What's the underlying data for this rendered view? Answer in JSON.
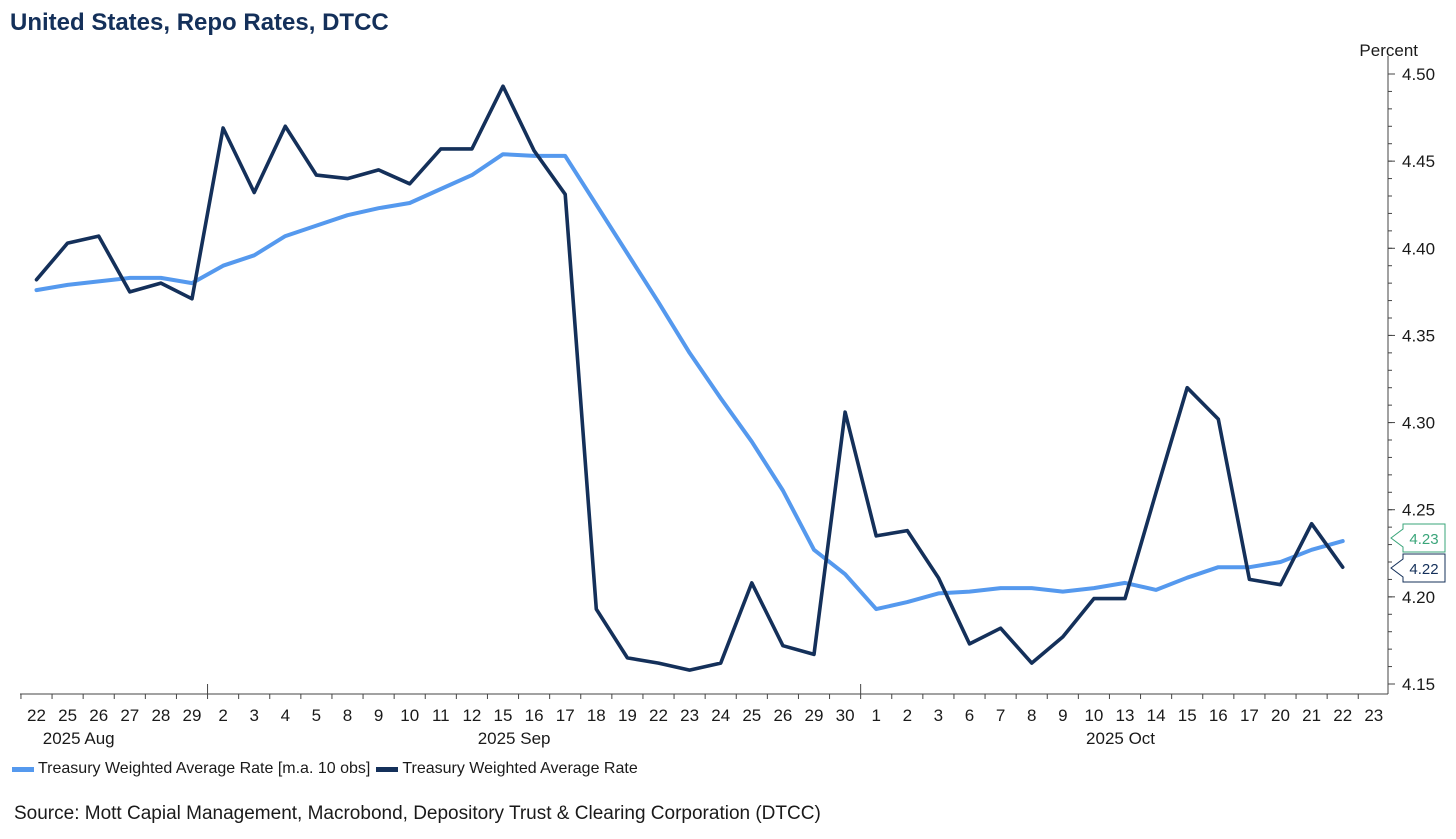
{
  "title": "United States, Repo Rates, DTCC",
  "source": "Source: Mott Capial Management, Macrobond, Depository Trust & Clearing Corporation (DTCC)",
  "colors": {
    "title": "#14305a",
    "ma": "#5599ee",
    "rate": "#14305a",
    "label_ma": "#3aa57a"
  },
  "chart_data": {
    "type": "line",
    "ylabel": "Percent",
    "ylim": [
      4.15,
      4.5
    ],
    "yticks": [
      "4.15",
      "4.20",
      "4.25",
      "4.30",
      "4.35",
      "4.40",
      "4.45",
      "4.50"
    ],
    "x": [
      "22",
      "25",
      "26",
      "27",
      "28",
      "29",
      "2",
      "3",
      "4",
      "5",
      "8",
      "9",
      "10",
      "11",
      "12",
      "15",
      "16",
      "17",
      "18",
      "19",
      "22",
      "23",
      "24",
      "25",
      "26",
      "29",
      "30",
      "1",
      "2",
      "3",
      "6",
      "7",
      "8",
      "9",
      "10",
      "13",
      "14",
      "15",
      "16",
      "17",
      "20",
      "21",
      "22",
      "23"
    ],
    "months": [
      {
        "label": "2025 Aug",
        "center_index": 2
      },
      {
        "label": "2025 Sep",
        "center_index": 16
      },
      {
        "label": "2025 Oct",
        "center_index": 35.5
      }
    ],
    "month_boundaries": [
      5.5,
      26.5
    ],
    "series": [
      {
        "name": "Treasury Weighted Average Rate [m.a. 10 obs]",
        "color": "#5599ee",
        "values": [
          4.376,
          4.379,
          4.381,
          4.383,
          4.383,
          4.38,
          4.39,
          4.396,
          4.407,
          4.413,
          4.419,
          4.423,
          4.426,
          4.434,
          4.442,
          4.454,
          4.453,
          4.453,
          4.425,
          4.397,
          4.369,
          4.34,
          4.314,
          4.289,
          4.261,
          4.227,
          4.213,
          4.193,
          4.197,
          4.202,
          4.203,
          4.205,
          4.205,
          4.203,
          4.205,
          4.208,
          4.204,
          4.211,
          4.217,
          4.217,
          4.22,
          4.227,
          4.232,
          null
        ],
        "end_label": "4.23"
      },
      {
        "name": "Treasury Weighted Average Rate",
        "color": "#14305a",
        "values": [
          4.382,
          4.403,
          4.407,
          4.375,
          4.38,
          4.371,
          4.469,
          4.432,
          4.47,
          4.442,
          4.44,
          4.445,
          4.437,
          4.457,
          4.457,
          4.493,
          4.456,
          4.431,
          4.193,
          4.165,
          4.162,
          4.158,
          4.162,
          4.208,
          4.172,
          4.167,
          4.306,
          4.235,
          4.238,
          4.211,
          4.173,
          4.182,
          4.162,
          4.177,
          4.199,
          4.199,
          4.26,
          4.32,
          4.302,
          4.21,
          4.207,
          4.242,
          4.217,
          null
        ],
        "end_label": "4.22"
      }
    ]
  }
}
